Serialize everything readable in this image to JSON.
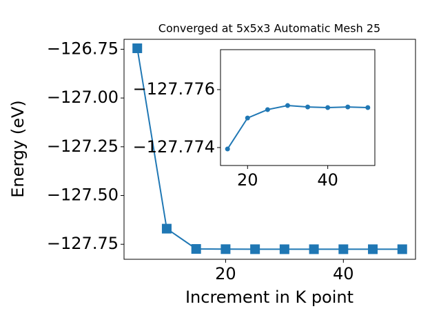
{
  "chart_data": [
    {
      "type": "line",
      "title": "Converged at 5x5x3 Automatic Mesh 25",
      "x_label": "Increment in K point",
      "y_label": "Energy (eV)",
      "x": [
        5,
        10,
        15,
        20,
        25,
        30,
        35,
        40,
        45,
        50
      ],
      "series": [
        {
          "color": "#1f77b4",
          "marker": "square",
          "values": [
            -126.745,
            -127.67,
            -127.77395,
            -127.77502,
            -127.77531,
            -127.77545,
            -127.7754,
            -127.77538,
            -127.7754,
            -127.77538
          ]
        }
      ],
      "xlim": [
        2.75,
        52.25
      ],
      "ylim": [
        -127.827,
        -126.699
      ],
      "xticks": [
        20,
        40
      ],
      "yticks": [
        {
          "value": -126.75,
          "label": "−126.75"
        },
        {
          "value": -127.0,
          "label": "−127.00"
        },
        {
          "value": -127.25,
          "label": "−127.25"
        },
        {
          "value": -127.5,
          "label": "−127.50"
        },
        {
          "value": -127.75,
          "label": "−127.75"
        }
      ]
    },
    {
      "type": "line",
      "x": [
        15,
        20,
        25,
        30,
        35,
        40,
        45,
        50
      ],
      "series": [
        {
          "color": "#1f77b4",
          "marker": "circle",
          "values": [
            -127.77395,
            -127.77502,
            -127.77531,
            -127.77545,
            -127.7754,
            -127.77538,
            -127.7754,
            -127.77538
          ]
        }
      ],
      "xlim": [
        13.25,
        51.75
      ],
      "ylim": [
        -127.77338,
        -127.77738
      ],
      "xticks": [
        20,
        40
      ],
      "yticks": [
        {
          "value": -127.776,
          "label": "−127.776"
        },
        {
          "value": -127.774,
          "label": "−127.774"
        }
      ]
    }
  ]
}
